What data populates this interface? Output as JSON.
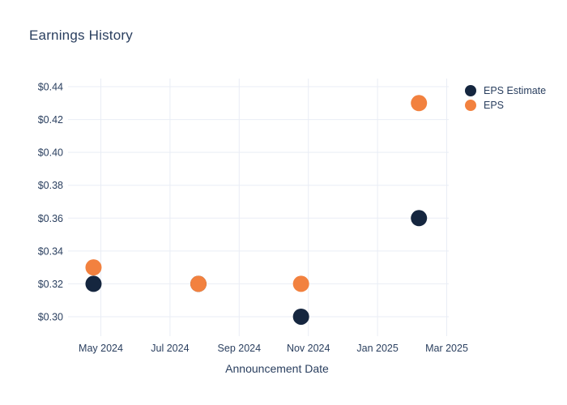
{
  "title": "Earnings History",
  "chart_data": {
    "type": "scatter",
    "title": "Earnings History",
    "xlabel": "Announcement Date",
    "ylabel": "",
    "ylim": [
      0.29,
      0.446
    ],
    "grid": true,
    "legend_position": "right",
    "marker_diameter_px": 20,
    "colors": {
      "text": "#2a3f5f",
      "grid": "#e9edf5",
      "background": "#ffffff",
      "eps_estimate": "#15263f",
      "eps": "#f2813f"
    },
    "y_ticks": [
      {
        "label": "$0.44",
        "value": 0.44
      },
      {
        "label": "$0.42",
        "value": 0.42
      },
      {
        "label": "$0.40",
        "value": 0.4
      },
      {
        "label": "$0.38",
        "value": 0.38
      },
      {
        "label": "$0.36",
        "value": 0.36
      },
      {
        "label": "$0.34",
        "value": 0.34
      },
      {
        "label": "$0.32",
        "value": 0.32
      },
      {
        "label": "$0.30",
        "value": 0.3
      }
    ],
    "x_ticks": [
      {
        "label": "May 2024",
        "date": "2024-05-01"
      },
      {
        "label": "Jul 2024",
        "date": "2024-07-01"
      },
      {
        "label": "Sep 2024",
        "date": "2024-09-01"
      },
      {
        "label": "Nov 2024",
        "date": "2024-11-01"
      },
      {
        "label": "Jan 2025",
        "date": "2025-01-01"
      },
      {
        "label": "Mar 2025",
        "date": "2025-03-01"
      }
    ],
    "series": [
      {
        "name": "EPS Estimate",
        "color": "#15263f",
        "points": [
          {
            "date": "2024-04-25",
            "value": 0.32
          },
          {
            "date": "2024-07-26",
            "value": 0.32
          },
          {
            "date": "2024-10-25",
            "value": 0.3
          },
          {
            "date": "2025-02-07",
            "value": 0.36
          }
        ]
      },
      {
        "name": "EPS",
        "color": "#f2813f",
        "points": [
          {
            "date": "2024-04-25",
            "value": 0.33
          },
          {
            "date": "2024-07-26",
            "value": 0.32
          },
          {
            "date": "2024-10-25",
            "value": 0.32
          },
          {
            "date": "2025-02-07",
            "value": 0.43
          }
        ]
      }
    ]
  }
}
